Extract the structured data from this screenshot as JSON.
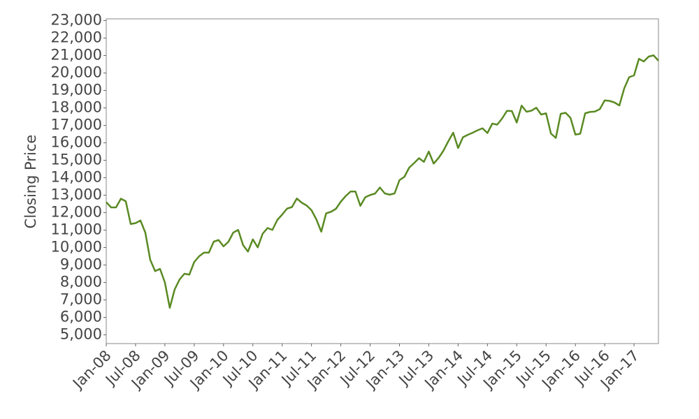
{
  "chart_data": {
    "type": "line",
    "y_label": "Closing Price",
    "color": "#5a8a23",
    "x": [
      "2008-01",
      "2008-02",
      "2008-03",
      "2008-04",
      "2008-05",
      "2008-06",
      "2008-07",
      "2008-08",
      "2008-09",
      "2008-10",
      "2008-11",
      "2008-12",
      "2009-01",
      "2009-02",
      "2009-03",
      "2009-04",
      "2009-05",
      "2009-06",
      "2009-07",
      "2009-08",
      "2009-09",
      "2009-10",
      "2009-11",
      "2009-12",
      "2010-01",
      "2010-02",
      "2010-03",
      "2010-04",
      "2010-05",
      "2010-06",
      "2010-07",
      "2010-08",
      "2010-09",
      "2010-10",
      "2010-11",
      "2010-12",
      "2011-01",
      "2011-02",
      "2011-03",
      "2011-04",
      "2011-05",
      "2011-06",
      "2011-07",
      "2011-08",
      "2011-09",
      "2011-10",
      "2011-11",
      "2011-12",
      "2012-01",
      "2012-02",
      "2012-03",
      "2012-04",
      "2012-05",
      "2012-06",
      "2012-07",
      "2012-08",
      "2012-09",
      "2012-10",
      "2012-11",
      "2012-12",
      "2013-01",
      "2013-02",
      "2013-03",
      "2013-04",
      "2013-05",
      "2013-06",
      "2013-07",
      "2013-08",
      "2013-09",
      "2013-10",
      "2013-11",
      "2013-12",
      "2014-01",
      "2014-02",
      "2014-03",
      "2014-04",
      "2014-05",
      "2014-06",
      "2014-07",
      "2014-08",
      "2014-09",
      "2014-10",
      "2014-11",
      "2014-12",
      "2015-01",
      "2015-02",
      "2015-03",
      "2015-04",
      "2015-05",
      "2015-06",
      "2015-07",
      "2015-08",
      "2015-09",
      "2015-10",
      "2015-11",
      "2015-12",
      "2016-01",
      "2016-02",
      "2016-03",
      "2016-04",
      "2016-05",
      "2016-06",
      "2016-07",
      "2016-08",
      "2016-09",
      "2016-10",
      "2016-11",
      "2016-12",
      "2017-01",
      "2017-02",
      "2017-03",
      "2017-04",
      "2017-05",
      "2017-06"
    ],
    "values": [
      12600,
      12300,
      12300,
      12800,
      12650,
      11350,
      11400,
      11550,
      10850,
      9300,
      8650,
      8780,
      8000,
      6550,
      7600,
      8170,
      8500,
      8450,
      9170,
      9500,
      9710,
      9710,
      10340,
      10430,
      10070,
      10330,
      10860,
      11010,
      10140,
      9770,
      10470,
      10010,
      10790,
      11120,
      11010,
      11580,
      11890,
      12230,
      12320,
      12810,
      12570,
      12410,
      12140,
      11610,
      10910,
      11960,
      12050,
      12220,
      12630,
      12950,
      13210,
      13210,
      12390,
      12880,
      13010,
      13090,
      13440,
      13100,
      13030,
      13100,
      13860,
      14050,
      14580,
      14840,
      15120,
      14910,
      15500,
      14810,
      15130,
      15550,
      16090,
      16580,
      15700,
      16320,
      16460,
      16580,
      16720,
      16830,
      16560,
      17100,
      17040,
      17390,
      17830,
      17820,
      17160,
      18130,
      17780,
      17840,
      18010,
      17620,
      17690,
      16530,
      16280,
      17660,
      17720,
      17430,
      16470,
      16520,
      17690,
      17770,
      17790,
      17930,
      18430,
      18400,
      18310,
      18140,
      19120,
      19760,
      19860,
      20810,
      20660,
      20940,
      21010,
      20700
    ],
    "xlim": [
      "2008-01",
      "2017-06"
    ],
    "xticks": [
      {
        "value": "2008-01",
        "label": "Jan-08"
      },
      {
        "value": "2008-07",
        "label": "Jul-08"
      },
      {
        "value": "2009-01",
        "label": "Jan-09"
      },
      {
        "value": "2009-07",
        "label": "Jul-09"
      },
      {
        "value": "2010-01",
        "label": "Jan-10"
      },
      {
        "value": "2010-07",
        "label": "Jul-10"
      },
      {
        "value": "2011-01",
        "label": "Jan-11"
      },
      {
        "value": "2011-07",
        "label": "Jul-11"
      },
      {
        "value": "2012-01",
        "label": "Jan-12"
      },
      {
        "value": "2012-07",
        "label": "Jul-12"
      },
      {
        "value": "2013-01",
        "label": "Jan-13"
      },
      {
        "value": "2013-07",
        "label": "Jul-13"
      },
      {
        "value": "2014-01",
        "label": "Jan-14"
      },
      {
        "value": "2014-07",
        "label": "Jul-14"
      },
      {
        "value": "2015-01",
        "label": "Jan-15"
      },
      {
        "value": "2015-07",
        "label": "Jul-15"
      },
      {
        "value": "2016-01",
        "label": "Jan-16"
      },
      {
        "value": "2016-07",
        "label": "Jul-16"
      },
      {
        "value": "2017-01",
        "label": "Jan-17"
      }
    ],
    "ylim": [
      4500,
      23100
    ],
    "yticks": [
      {
        "value": 5000,
        "label": "5,000"
      },
      {
        "value": 6000,
        "label": "6,000"
      },
      {
        "value": 7000,
        "label": "7,000"
      },
      {
        "value": 8000,
        "label": "8,000"
      },
      {
        "value": 9000,
        "label": "9,000"
      },
      {
        "value": 10000,
        "label": "10,000"
      },
      {
        "value": 11000,
        "label": "11,000"
      },
      {
        "value": 12000,
        "label": "12,000"
      },
      {
        "value": 13000,
        "label": "13,000"
      },
      {
        "value": 14000,
        "label": "14,000"
      },
      {
        "value": 15000,
        "label": "15,000"
      },
      {
        "value": 16000,
        "label": "16,000"
      },
      {
        "value": 17000,
        "label": "17,000"
      },
      {
        "value": 18000,
        "label": "18,000"
      },
      {
        "value": 19000,
        "label": "19,000"
      },
      {
        "value": 20000,
        "label": "20,000"
      },
      {
        "value": 21000,
        "label": "21,000"
      },
      {
        "value": 22000,
        "label": "22,000"
      },
      {
        "value": 23000,
        "label": "23,000"
      }
    ],
    "grid": false
  }
}
